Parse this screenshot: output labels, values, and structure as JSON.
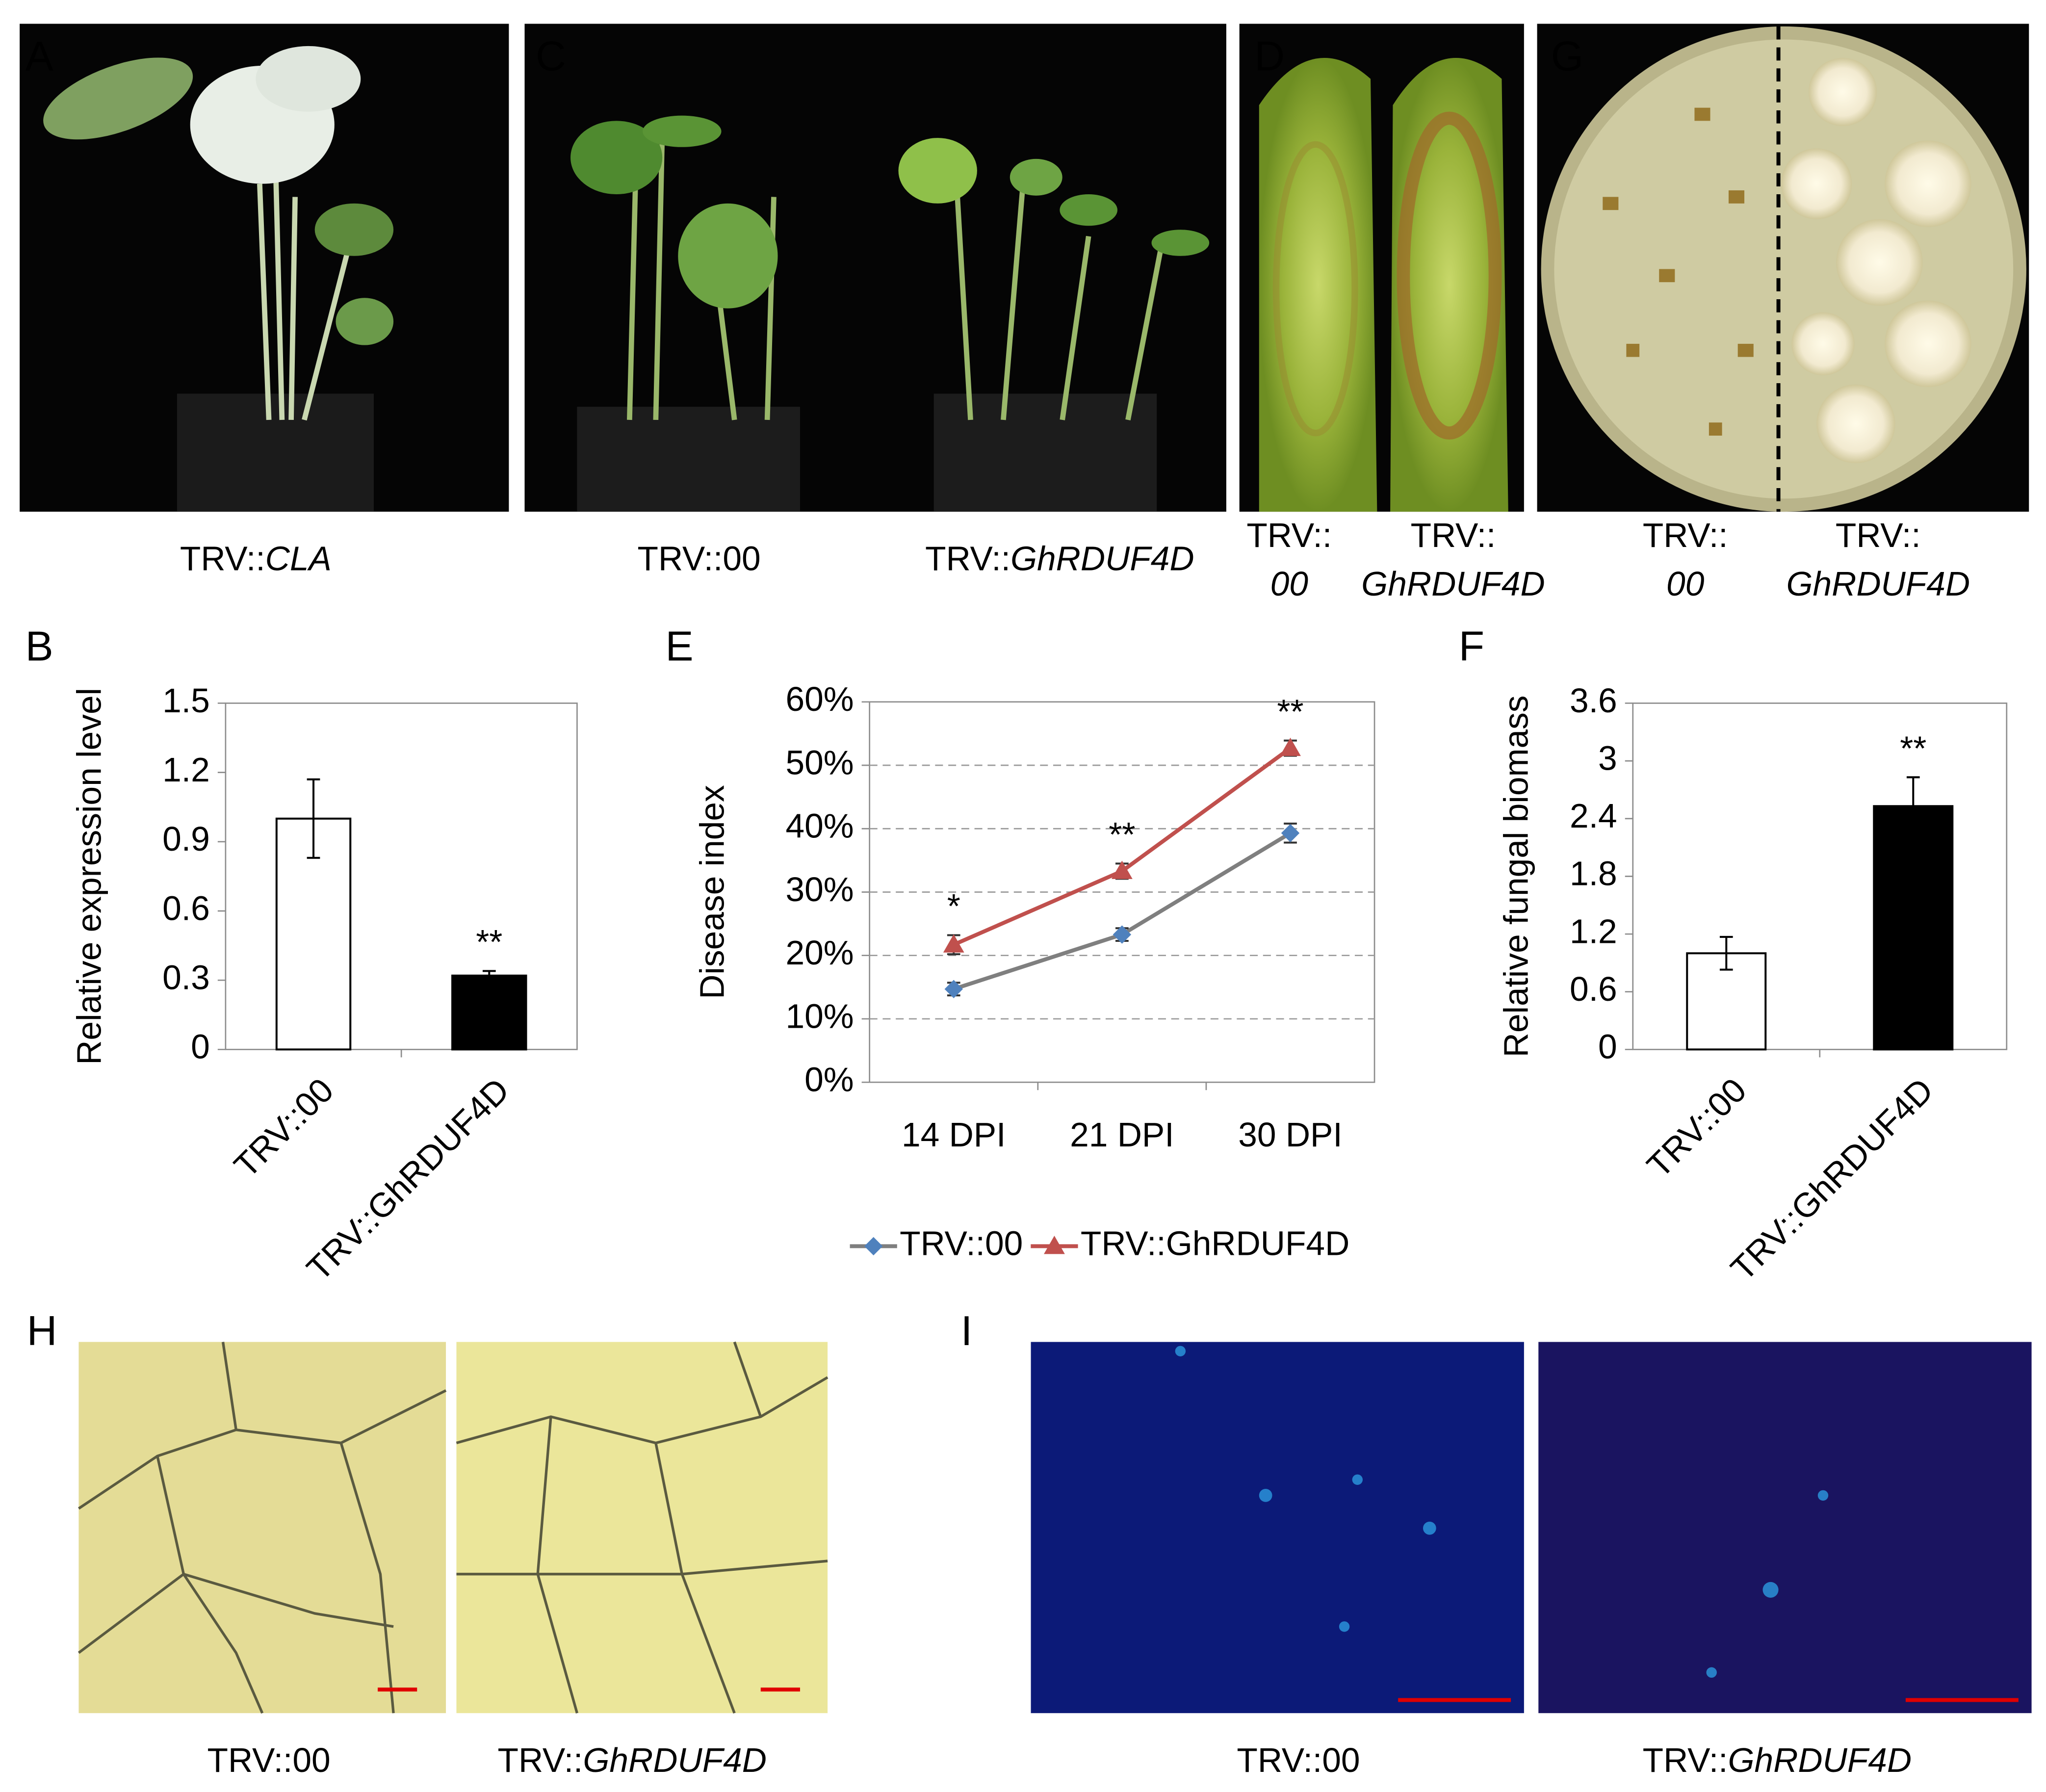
{
  "panels": [
    {
      "letter": "A",
      "captions": [
        {
          "text": "TRV::",
          "italic": "CLA"
        }
      ]
    },
    {
      "letter": "C",
      "captions": [
        {
          "text": "TRV::00"
        },
        {
          "text": "TRV::",
          "italic": "GhRDUF4D"
        }
      ]
    },
    {
      "letter": "D",
      "captions": [
        {
          "text": "TRV::",
          "italic": "00"
        },
        {
          "text": "TRV::",
          "italic": "GhRDUF4D"
        }
      ]
    },
    {
      "letter": "G",
      "captions": [
        {
          "text": "TRV::",
          "italic": "00"
        },
        {
          "text": "TRV::",
          "italic": "GhRDUF4D"
        }
      ]
    },
    {
      "letter": "H",
      "captions": [
        {
          "text": "TRV::00"
        },
        {
          "text": "TRV::",
          "italic": "GhRDUF4D"
        }
      ]
    },
    {
      "letter": "I",
      "captions": [
        {
          "text": "TRV::00"
        },
        {
          "text": "TRV::",
          "italic": "GhRDUF4D"
        }
      ]
    }
  ],
  "chart_data": [
    {
      "type": "bar",
      "panel": "B",
      "y_label": "Relative expression level",
      "categories": [
        "TRV::00",
        "TRV::GhRDUF4D"
      ],
      "values": [
        1.0,
        0.32
      ],
      "errors": [
        0.17,
        0.02
      ],
      "colors": [
        "#ffffff",
        "#000000"
      ],
      "significance": [
        null,
        "**"
      ],
      "ylim": [
        0,
        1.5
      ],
      "yticks": [
        0,
        0.3,
        0.6,
        0.9,
        1.2,
        1.5
      ],
      "grid": false
    },
    {
      "type": "line",
      "panel": "E",
      "y_label": "Disease index",
      "categories": [
        "14 DPI",
        "21 DPI",
        "30 DPI"
      ],
      "series": [
        {
          "name": "TRV::00",
          "color": "#7f7f7f",
          "marker_color": "#4f81bd",
          "marker": "diamond",
          "values": [
            14.7,
            23.3,
            39.3
          ],
          "errors": [
            1.0,
            1.0,
            1.5
          ]
        },
        {
          "name": "TRV::GhRDUF4D",
          "color": "#c0504d",
          "marker_color": "#c0504d",
          "marker": "triangle",
          "values": [
            21.7,
            33.3,
            52.7
          ],
          "errors": [
            1.5,
            1.2,
            1.2
          ]
        }
      ],
      "significance": [
        "*",
        "**",
        "**"
      ],
      "ylim": [
        0,
        60
      ],
      "yticks": [
        {
          "value": 0,
          "label": "0%"
        },
        {
          "value": 10,
          "label": "10%"
        },
        {
          "value": 20,
          "label": "20%"
        },
        {
          "value": 30,
          "label": "30%"
        },
        {
          "value": 40,
          "label": "40%"
        },
        {
          "value": 50,
          "label": "50%"
        },
        {
          "value": 60,
          "label": "60%"
        }
      ],
      "grid": true,
      "legend": "bottom"
    },
    {
      "type": "bar",
      "panel": "F",
      "y_label": "Relative fungal biomass",
      "categories": [
        "TRV::00",
        "TRV::GhRDUF4D"
      ],
      "values": [
        1.0,
        2.53
      ],
      "errors": [
        0.17,
        0.3
      ],
      "colors": [
        "#ffffff",
        "#000000"
      ],
      "significance": [
        null,
        "**"
      ],
      "ylim": [
        0,
        3.6
      ],
      "yticks": [
        0,
        0.6,
        1.2,
        1.8,
        2.4,
        3,
        3.6
      ],
      "grid": false
    }
  ]
}
